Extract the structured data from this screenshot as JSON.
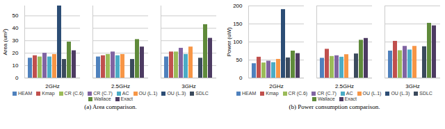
{
  "chart_data": [
    {
      "type": "bar",
      "title": "(a) Area comparison.",
      "y_label": "Area (um²)",
      "categories": [
        "2GHz",
        "2.5GHz",
        "3GHz"
      ],
      "series": [
        {
          "name": "HEAM",
          "color": "#4f81bd",
          "values": [
            16,
            17,
            17
          ]
        },
        {
          "name": "Kmap",
          "color": "#c0504d",
          "values": [
            18,
            18,
            21
          ]
        },
        {
          "name": "CR (C.6)",
          "color": "#9bbb59",
          "values": [
            17,
            19,
            21
          ]
        },
        {
          "name": "CR (C.7)",
          "color": "#8064a2",
          "values": [
            20,
            21,
            24
          ]
        },
        {
          "name": "AC",
          "color": "#4bacc6",
          "values": [
            17,
            18,
            19
          ]
        },
        {
          "name": "OU (L.1)",
          "color": "#f79646",
          "values": [
            19,
            19,
            25
          ]
        },
        {
          "name": "OU (L.3)",
          "color": "#2c4d75",
          "values": [
            58,
            null,
            null
          ]
        },
        {
          "name": "SDLC",
          "color": "#3b4a5c",
          "values": [
            15,
            15,
            16
          ]
        },
        {
          "name": "Wallace",
          "color": "#5f8a3a",
          "values": [
            29,
            31,
            43
          ]
        },
        {
          "name": "Exact",
          "color": "#4d3b62",
          "values": [
            22,
            25,
            32
          ]
        }
      ],
      "ylim": [
        0,
        58
      ],
      "yticks": [
        0,
        10,
        20,
        30,
        40,
        50
      ],
      "grid": true,
      "legend": "bottom"
    },
    {
      "type": "bar",
      "title": "(b) Power consumption comparison.",
      "y_label": "Power (uW)",
      "categories": [
        "2GHz",
        "2.5GHz",
        "3GHz"
      ],
      "series": [
        {
          "name": "HEAM",
          "color": "#4f81bd",
          "values": [
            40,
            55,
            75
          ]
        },
        {
          "name": "Kmap",
          "color": "#c0504d",
          "values": [
            58,
            80,
            102
          ]
        },
        {
          "name": "CR (C.6)",
          "color": "#9bbb59",
          "values": [
            42,
            60,
            76
          ]
        },
        {
          "name": "CR (C.7)",
          "color": "#8064a2",
          "values": [
            47,
            62,
            88
          ]
        },
        {
          "name": "AC",
          "color": "#4bacc6",
          "values": [
            43,
            58,
            78
          ]
        },
        {
          "name": "OU (L.1)",
          "color": "#f79646",
          "values": [
            52,
            65,
            88
          ]
        },
        {
          "name": "OU (L.3)",
          "color": "#2c4d75",
          "values": [
            190,
            null,
            null
          ]
        },
        {
          "name": "SDLC",
          "color": "#3b4a5c",
          "values": [
            56,
            67,
            87
          ]
        },
        {
          "name": "Wallace",
          "color": "#5f8a3a",
          "values": [
            75,
            105,
            152
          ]
        },
        {
          "name": "Exact",
          "color": "#4d3b62",
          "values": [
            68,
            110,
            145
          ]
        }
      ],
      "ylim": [
        0,
        200
      ],
      "yticks": [
        0,
        50,
        100,
        150,
        200
      ],
      "grid": true,
      "legend": "bottom"
    }
  ]
}
